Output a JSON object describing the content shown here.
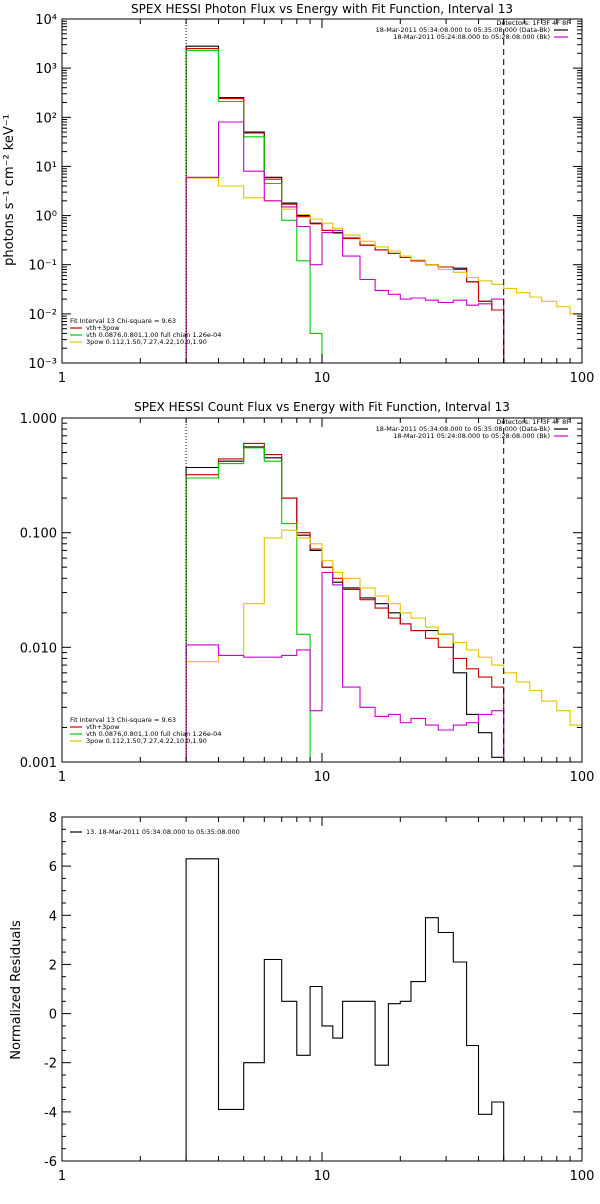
{
  "chart_data": [
    {
      "type": "line",
      "title": "SPEX HESSI Photon Flux vs Energy with Fit Function, Interval 13",
      "xlabel": "",
      "ylabel": "photons s⁻¹ cm⁻² keV⁻¹",
      "xscale": "log",
      "yscale": "log",
      "xlim": [
        1,
        100
      ],
      "ylim": [
        0.001,
        10000
      ],
      "x_ticks": [
        1,
        10,
        100
      ],
      "x_tick_labels": [
        "1",
        "10",
        "100"
      ],
      "y_ticks": [
        0.001,
        0.01,
        0.1,
        1,
        10,
        100,
        1000,
        10000
      ],
      "y_tick_labels": [
        "10⁻³",
        "10⁻²",
        "10⁻¹",
        "10⁰",
        "10¹",
        "10²",
        "10³",
        "10⁴"
      ],
      "vlines": [
        {
          "x": 3.0,
          "style": "dotted"
        },
        {
          "x": 50.0,
          "style": "dashed"
        }
      ],
      "legend_top": {
        "header": "Detectors: 1F 3F 4F 8F",
        "entries": [
          {
            "label": "18-Mar-2011 05:34:08.000 to 05:35:08.000 (Data-Bk)",
            "color": "#000000"
          },
          {
            "label": "18-Mar-2011 05:24:08.000 to 05:28:08.000 (Bk)",
            "color": "#cc00cc"
          }
        ]
      },
      "legend_bottom": {
        "header": "Fit Interval 13   Chi-square = 9.63",
        "entries": [
          {
            "label": "vth+3pow",
            "color": "#cc0000"
          },
          {
            "label": "vth 0.0876,0.801,1.00  full chian 1.26e-04",
            "color": "#00cc00"
          },
          {
            "label": "3pow 0.112,1.50,7.27,4.22,10.0,1.90",
            "color": "#e6c300"
          }
        ]
      },
      "series": [
        {
          "name": "Data-Bk",
          "color": "#000000",
          "edges": [
            3,
            4,
            5,
            6,
            7,
            8,
            9,
            10,
            11,
            12,
            14,
            16,
            18,
            20,
            22,
            25,
            28,
            32,
            36,
            40,
            45,
            50
          ],
          "values": [
            2800,
            250,
            50,
            6,
            1.8,
            1.0,
            0.7,
            0.5,
            0.45,
            0.35,
            0.25,
            0.2,
            0.17,
            0.14,
            0.12,
            0.1,
            0.09,
            0.085,
            0.045,
            0.018,
            0.012
          ],
          "drop_to_floor": true
        },
        {
          "name": "vth+3pow",
          "color": "#cc0000",
          "edges": [
            3,
            4,
            5,
            6,
            7,
            8,
            9,
            10,
            11,
            12,
            14,
            16,
            18,
            20,
            22,
            25,
            28,
            32,
            36,
            40,
            45,
            50
          ],
          "values": [
            2500,
            240,
            48,
            5.5,
            1.7,
            0.95,
            0.68,
            0.5,
            0.44,
            0.34,
            0.25,
            0.2,
            0.17,
            0.14,
            0.12,
            0.1,
            0.09,
            0.08,
            0.045,
            0.018,
            0.012
          ],
          "drop_to_floor": true
        },
        {
          "name": "vth",
          "color": "#00cc00",
          "edges": [
            3,
            4,
            5,
            6,
            7,
            8,
            9,
            10
          ],
          "values": [
            2300,
            210,
            40,
            4.5,
            0.8,
            0.12,
            0.004
          ],
          "drop_to_floor": true
        },
        {
          "name": "3pow",
          "color": "#e6c300",
          "edges": [
            3,
            4,
            5,
            6,
            7,
            8,
            9,
            10,
            11,
            12,
            14,
            16,
            18,
            20,
            22,
            25,
            28,
            32,
            36,
            40,
            45,
            50,
            56,
            63,
            70,
            80,
            90,
            100
          ],
          "values": [
            5.8,
            4,
            2.3,
            2,
            1.35,
            1.05,
            0.85,
            0.7,
            0.55,
            0.4,
            0.3,
            0.23,
            0.19,
            0.15,
            0.125,
            0.1,
            0.08,
            0.07,
            0.055,
            0.047,
            0.04,
            0.033,
            0.027,
            0.022,
            0.018,
            0.014,
            0.01
          ],
          "drop_to_floor": false
        },
        {
          "name": "Bk",
          "color": "#cc00cc",
          "edges": [
            3,
            4,
            5,
            6,
            7,
            8,
            9,
            10,
            11,
            12,
            14,
            16,
            18,
            20,
            22,
            25,
            28,
            32,
            36,
            40,
            45,
            50
          ],
          "values": [
            6,
            80,
            8,
            2,
            1.5,
            0.6,
            0.1,
            0.45,
            0.5,
            0.15,
            0.05,
            0.03,
            0.025,
            0.02,
            0.021,
            0.019,
            0.017,
            0.019,
            0.015,
            0.016,
            0.02
          ],
          "drop_to_floor": true
        }
      ]
    },
    {
      "type": "line",
      "title": "SPEX HESSI Count Flux vs Energy with Fit Function, Interval 13",
      "xlabel": "",
      "ylabel": "",
      "xscale": "log",
      "yscale": "log",
      "xlim": [
        1,
        100
      ],
      "ylim": [
        0.001,
        1.0
      ],
      "x_ticks": [
        1,
        10,
        100
      ],
      "x_tick_labels": [
        "1",
        "10",
        "100"
      ],
      "y_ticks": [
        0.001,
        0.01,
        0.1,
        1.0
      ],
      "y_tick_labels": [
        "0.001",
        "0.010",
        "0.100",
        "1.000"
      ],
      "vlines": [
        {
          "x": 3.0,
          "style": "dotted"
        },
        {
          "x": 50.0,
          "style": "dashed"
        }
      ],
      "legend_top": {
        "header": "Detectors: 1F 3F 4F 8F",
        "entries": [
          {
            "label": "18-Mar-2011 05:34:08.000 to 05:35:08.000 (Data-Bk)",
            "color": "#000000"
          },
          {
            "label": "18-Mar-2011 05:24:08.000 to 05:28:08.000 (Bk)",
            "color": "#cc00cc"
          }
        ]
      },
      "legend_bottom": {
        "header": "Fit Interval 13   Chi-square = 9.63",
        "entries": [
          {
            "label": "vth+3pow",
            "color": "#cc0000"
          },
          {
            "label": "vth 0.0876,0.801,1.00  full chian 1.26e-04",
            "color": "#00cc00"
          },
          {
            "label": "3pow 0.112,1.50,7.27,4.22,10.0,1.90",
            "color": "#e6c300"
          }
        ]
      },
      "series": [
        {
          "name": "Data-Bk",
          "color": "#000000",
          "edges": [
            3,
            4,
            5,
            6,
            7,
            8,
            9,
            10,
            11,
            12,
            14,
            16,
            18,
            20,
            22,
            25,
            28,
            32,
            36,
            40,
            45,
            50
          ],
          "values": [
            0.37,
            0.42,
            0.56,
            0.45,
            0.2,
            0.095,
            0.07,
            0.05,
            0.037,
            0.033,
            0.027,
            0.024,
            0.02,
            0.016,
            0.014,
            0.014,
            0.013,
            0.006,
            0.0026,
            0.0018,
            0.0011
          ],
          "drop_to_floor": true
        },
        {
          "name": "vth+3pow",
          "color": "#cc0000",
          "edges": [
            3,
            4,
            5,
            6,
            7,
            8,
            9,
            10,
            11,
            12,
            14,
            16,
            18,
            20,
            22,
            25,
            28,
            32,
            36,
            40,
            45,
            50
          ],
          "values": [
            0.32,
            0.44,
            0.6,
            0.48,
            0.2,
            0.1,
            0.072,
            0.05,
            0.04,
            0.032,
            0.026,
            0.022,
            0.018,
            0.016,
            0.014,
            0.012,
            0.01,
            0.008,
            0.0065,
            0.0055,
            0.0045
          ],
          "drop_to_floor": true
        },
        {
          "name": "vth",
          "color": "#00cc00",
          "edges": [
            3,
            4,
            5,
            6,
            7,
            8,
            9
          ],
          "values": [
            0.3,
            0.4,
            0.55,
            0.42,
            0.12,
            0.013
          ],
          "drop_to_floor": true
        },
        {
          "name": "3pow",
          "color": "#e6c300",
          "edges": [
            3,
            4,
            5,
            6,
            7,
            8,
            9,
            10,
            11,
            12,
            14,
            16,
            18,
            20,
            22,
            25,
            28,
            32,
            36,
            40,
            45,
            50,
            56,
            63,
            70,
            80,
            90,
            100
          ],
          "values": [
            0.0075,
            0.0085,
            0.024,
            0.09,
            0.105,
            0.09,
            0.08,
            0.057,
            0.045,
            0.04,
            0.033,
            0.028,
            0.024,
            0.02,
            0.018,
            0.015,
            0.013,
            0.011,
            0.0095,
            0.0082,
            0.007,
            0.006,
            0.005,
            0.0042,
            0.0034,
            0.0028,
            0.0021
          ],
          "drop_to_floor": false
        },
        {
          "name": "Bk",
          "color": "#cc00cc",
          "edges": [
            3,
            4,
            5,
            6,
            7,
            8,
            9,
            10,
            11,
            12,
            14,
            16,
            18,
            20,
            22,
            25,
            28,
            32,
            36,
            40,
            45,
            50
          ],
          "values": [
            0.0105,
            0.0085,
            0.0082,
            0.0082,
            0.0085,
            0.0095,
            0.0028,
            0.045,
            0.035,
            0.0045,
            0.003,
            0.0025,
            0.0026,
            0.0022,
            0.0024,
            0.0021,
            0.0019,
            0.0021,
            0.0022,
            0.0026,
            0.0028
          ],
          "drop_to_floor": true
        }
      ]
    },
    {
      "type": "line",
      "title": "",
      "xlabel": "",
      "ylabel": "Normalized Residuals",
      "xscale": "log",
      "yscale": "linear",
      "xlim": [
        1,
        100
      ],
      "ylim": [
        -6,
        8
      ],
      "x_ticks": [
        1,
        10,
        100
      ],
      "x_tick_labels": [
        "1",
        "10",
        "100"
      ],
      "y_ticks": [
        -6,
        -4,
        -2,
        0,
        2,
        4,
        6,
        8
      ],
      "y_tick_labels": [
        "-6",
        "-4",
        "-2",
        "0",
        "2",
        "4",
        "6",
        "8"
      ],
      "legend_top_left": {
        "entries": [
          {
            "label": "13. 18-Mar-2011 05:34:08.000 to 05:35:08.000",
            "color": "#000000"
          }
        ]
      },
      "series": [
        {
          "name": "13. 18-Mar-2011 05:34:08.000 to 05:35:08.000",
          "color": "#000000",
          "edges": [
            3,
            4,
            5,
            6,
            7,
            8,
            9,
            10,
            11,
            12,
            14,
            16,
            18,
            20,
            22,
            25,
            28,
            32,
            36,
            40,
            45,
            50
          ],
          "values": [
            6.3,
            -3.9,
            -2.0,
            2.2,
            0.5,
            -1.7,
            1.1,
            -0.5,
            -1.0,
            0.5,
            0.5,
            -2.1,
            0.4,
            0.5,
            1.3,
            3.9,
            3.3,
            2.1,
            -1.3,
            -4.1,
            -3.6
          ],
          "drop_to_floor": true
        }
      ]
    }
  ]
}
